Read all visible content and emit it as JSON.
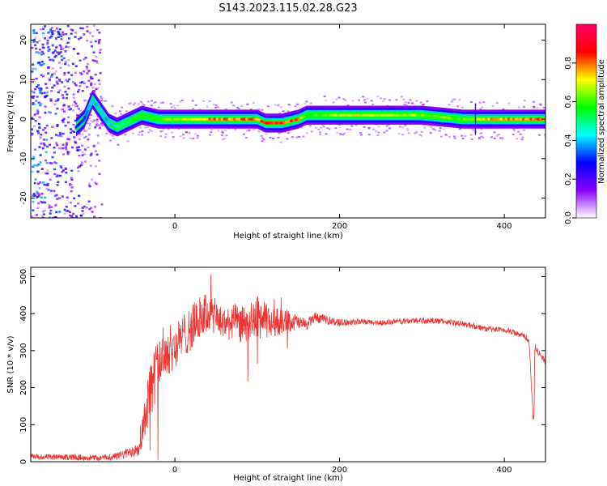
{
  "figure": {
    "title": "S143.2023.115.02.28.G23"
  },
  "chart_data": [
    {
      "type": "heatmap",
      "xlabel": "Height of straight line (km)",
      "ylabel": "Frequency (Hz)",
      "xlim": [
        -175,
        450
      ],
      "ylim": [
        -25,
        24
      ],
      "x_ticks": [
        0,
        200,
        400
      ],
      "y_ticks": [
        -20,
        -10,
        0,
        10,
        20
      ],
      "grid": false,
      "colorbar": {
        "label": "Normalized spectral amplitude",
        "range": [
          0,
          1
        ],
        "ticks": [
          0.0,
          0.2,
          0.4,
          0.6,
          0.8
        ],
        "tick_labels": [
          "0.0",
          "0.2",
          "0.4",
          "0.6",
          "0.8"
        ],
        "colors": [
          "#ffffff",
          "#8a00ff",
          "#0000ff",
          "#00ffff",
          "#00ff00",
          "#ffff00",
          "#ff0000",
          "#ff0066"
        ]
      },
      "ridge": {
        "x": [
          -120,
          -110,
          -100,
          -90,
          -80,
          -70,
          -60,
          -50,
          -40,
          -20,
          0,
          20,
          50,
          100,
          110,
          130,
          150,
          160,
          200,
          250,
          300,
          350,
          365,
          400,
          450
        ],
        "y": [
          -2,
          0,
          5,
          2,
          -1,
          -2,
          -1,
          0,
          1,
          0,
          0,
          0,
          0,
          0,
          -1,
          -1,
          0,
          1,
          1,
          1,
          1,
          0,
          0,
          0,
          0
        ],
        "peak_amplitude": [
          0.3,
          0.35,
          0.45,
          0.4,
          0.45,
          0.5,
          0.55,
          0.6,
          0.6,
          0.65,
          0.7,
          0.75,
          0.85,
          0.85,
          0.9,
          0.9,
          0.85,
          0.6,
          0.75,
          0.75,
          0.7,
          0.65,
          0.75,
          0.85,
          0.9
        ]
      },
      "noise_region_x": [
        -175,
        -90
      ],
      "series_color": "#7a00ff"
    },
    {
      "type": "line",
      "xlabel": "Height of straight line (km)",
      "ylabel": "SNR (10 * v/v)",
      "xlim": [
        -175,
        450
      ],
      "ylim": [
        0,
        525
      ],
      "x_ticks": [
        0,
        200,
        400
      ],
      "y_ticks": [
        0,
        100,
        200,
        300,
        400,
        500
      ],
      "grid": false,
      "color": "#ee3333",
      "x": [
        -175,
        -150,
        -120,
        -90,
        -70,
        -55,
        -45,
        -40,
        -35,
        -30,
        -25,
        -20,
        -15,
        -10,
        0,
        10,
        20,
        30,
        40,
        50,
        60,
        70,
        80,
        90,
        100,
        110,
        120,
        130,
        140,
        150,
        160,
        170,
        180,
        200,
        220,
        250,
        280,
        300,
        320,
        340,
        360,
        380,
        400,
        420,
        425,
        430,
        433,
        435,
        436,
        437,
        438,
        440,
        445,
        450
      ],
      "y": [
        15,
        12,
        12,
        10,
        15,
        25,
        40,
        80,
        140,
        190,
        230,
        260,
        290,
        300,
        310,
        340,
        360,
        390,
        400,
        390,
        370,
        380,
        370,
        375,
        390,
        380,
        375,
        380,
        380,
        375,
        370,
        390,
        385,
        375,
        378,
        375,
        380,
        382,
        380,
        375,
        368,
        358,
        355,
        345,
        340,
        320,
        200,
        120,
        110,
        310,
        310,
        300,
        285,
        270
      ],
      "noise_amplitude": [
        8,
        8,
        8,
        8,
        10,
        15,
        25,
        50,
        70,
        80,
        80,
        80,
        75,
        70,
        60,
        60,
        60,
        60,
        55,
        50,
        45,
        50,
        50,
        50,
        60,
        50,
        40,
        35,
        30,
        20,
        15,
        15,
        12,
        10,
        8,
        8,
        8,
        8,
        8,
        8,
        8,
        8,
        8,
        8,
        8,
        10,
        10,
        10,
        10,
        8,
        8,
        8,
        8,
        8
      ]
    }
  ]
}
